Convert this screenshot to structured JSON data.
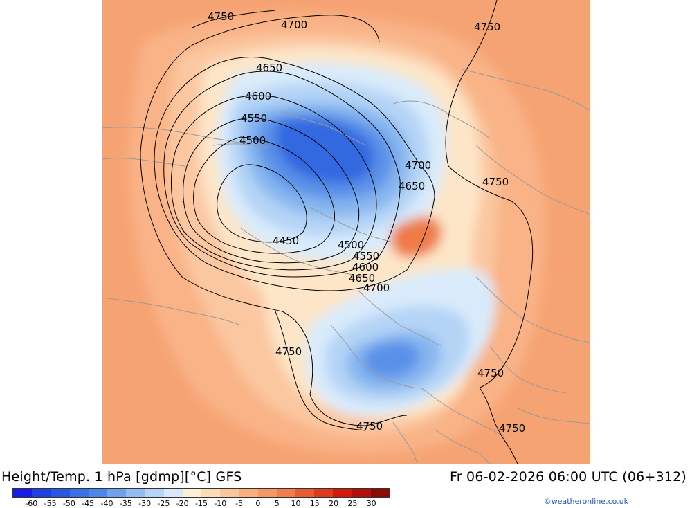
{
  "footer": {
    "title": "Height/Temp. 1 hPa [gdmp][°C] GFS",
    "datetime": "Fr 06-02-2026 06:00 UTC (06+312)",
    "credit": "©weatheronline.co.uk"
  },
  "contour_labels": {
    "c4750_a": "4750",
    "c4700_a": "4700",
    "c4750_b": "4750",
    "c4650_a": "4650",
    "c4600_a": "4600",
    "c4550_a": "4550",
    "c4500_a": "4500",
    "c4700_b": "4700",
    "c4650_b": "4650",
    "c4750_c": "4750",
    "c4450_a": "4450",
    "c4500_b": "4500",
    "c4550_b": "4550",
    "c4600_b": "4600",
    "c4650_c": "4650",
    "c4700_c": "4700",
    "c4750_d": "4750",
    "c4750_e": "4750",
    "c4750_f": "4750",
    "c4750_g": "4750"
  },
  "colorbar": {
    "ticks": [
      "-60",
      "-55",
      "-50",
      "-45",
      "-40",
      "-35",
      "-30",
      "-25",
      "-20",
      "-15",
      "-10",
      "-5",
      "0",
      "5",
      "10",
      "15",
      "20",
      "25",
      "30"
    ],
    "colors": [
      "#1a1ae6",
      "#1f3fe0",
      "#2a57e0",
      "#3b6fe6",
      "#4d86ea",
      "#6fa2ee",
      "#93bdf2",
      "#b6d5f6",
      "#d6e8fa",
      "#fdf0d5",
      "#fcdcb7",
      "#fbc79a",
      "#f9b07f",
      "#f59866",
      "#f07e4c",
      "#e85d30",
      "#de3a1c",
      "#d01a10",
      "#b40f0a",
      "#8a0a06"
    ],
    "palette": {
      "ocean_bg": "#f6a373",
      "orange_mid": "#f9b387",
      "orange_light": "#fbc7a0",
      "cream": "#fde6c8",
      "light_blue": "#d9ebfb",
      "blue_1": "#b4d4f6",
      "blue_2": "#86b5ef",
      "blue_3": "#5a91e8",
      "blue_4": "#3268e0",
      "warm_core": "#ef7b47"
    }
  }
}
